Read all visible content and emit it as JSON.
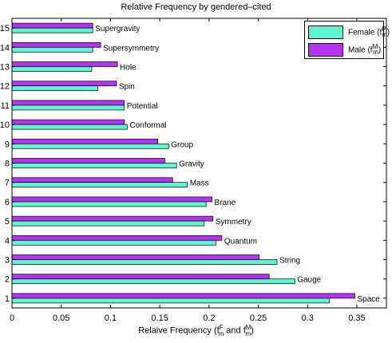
{
  "chart_data": {
    "type": "bar",
    "orientation": "horizontal",
    "title": "Relative Frequency by gendered–cited",
    "xlabel": {
      "prefix": "Relaive Frequency (f",
      "sup1": "F",
      "sub1": "m",
      "middle": " and f",
      "sup2": "M",
      "sub2": "m",
      "suffix": ")"
    },
    "ylabel": "",
    "xlim": [
      0,
      0.38
    ],
    "xticks": [
      "0",
      "0.05",
      "0.1",
      "0.15",
      "0.2",
      "0.25",
      "0.3",
      "0.35"
    ],
    "yticks": [
      "1",
      "2",
      "3",
      "4",
      "5",
      "6",
      "7",
      "8",
      "9",
      "10",
      "11",
      "12",
      "13",
      "14",
      "15"
    ],
    "categories": [
      "Space",
      "Gauge",
      "String",
      "Quantum",
      "Symmetry",
      "Brane",
      "Mass",
      "Gravity",
      "Group",
      "Conformal",
      "Potential",
      "Spin",
      "Hole",
      "Supersymmetry",
      "Supergravity"
    ],
    "series": [
      {
        "name": "Female",
        "color": "#5ff5d0",
        "values": [
          0.322,
          0.287,
          0.269,
          0.207,
          0.195,
          0.197,
          0.178,
          0.167,
          0.159,
          0.117,
          0.114,
          0.087,
          0.081,
          0.082,
          0.082
        ]
      },
      {
        "name": "Male",
        "color": "#b633f2",
        "values": [
          0.348,
          0.261,
          0.251,
          0.213,
          0.204,
          0.203,
          0.163,
          0.155,
          0.148,
          0.114,
          0.114,
          0.106,
          0.107,
          0.09,
          0.082
        ]
      }
    ],
    "legend": {
      "position": "top-right",
      "entries": [
        {
          "label": "Female (f",
          "sup": "F",
          "sub": "m",
          "close": ")",
          "color": "#5ff5d0"
        },
        {
          "label": "Male (f",
          "sup": "M",
          "sub": "m",
          "close": ")",
          "color": "#b633f2"
        }
      ]
    },
    "grid": false
  }
}
